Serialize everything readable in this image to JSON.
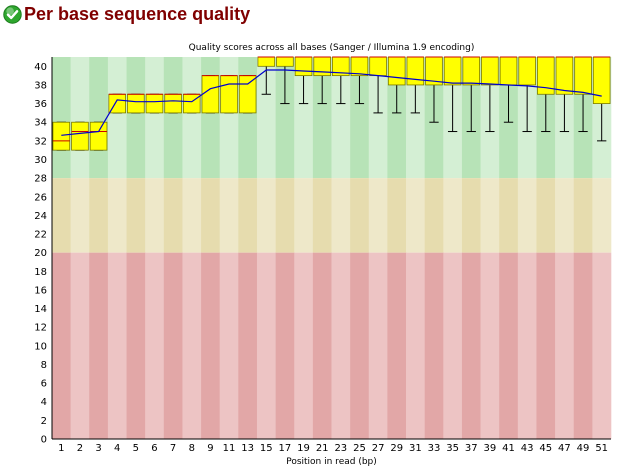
{
  "header": {
    "title": "Per base sequence quality",
    "status_icon": "pass-checkmark-icon"
  },
  "colors": {
    "title": "#800000",
    "icon_green": "#2ea62e",
    "good_zone": [
      "#b7e3b7",
      "#d4efd4"
    ],
    "warn_zone": [
      "#e6dcae",
      "#eee8c9"
    ],
    "bad_zone": [
      "#e2a7a7",
      "#edc4c4"
    ],
    "box_fill": "#ffff00",
    "box_stroke": "#7a7a00",
    "mean_line": "#0000cc",
    "median_line": "#cc0000",
    "whisker": "#000000"
  },
  "chart_data": {
    "type": "boxplot",
    "title": "Quality scores across all bases (Sanger / Illumina 1.9 encoding)",
    "xlabel": "Position in read (bp)",
    "ylabel": "",
    "ylim": [
      0,
      41
    ],
    "yticks": [
      0,
      2,
      4,
      6,
      8,
      10,
      12,
      14,
      16,
      18,
      20,
      22,
      24,
      26,
      28,
      30,
      32,
      34,
      36,
      38,
      40
    ],
    "xtick_labels": [
      "1",
      "2",
      "3",
      "4",
      "5",
      "6",
      "7",
      "8",
      "9",
      "11",
      "13",
      "15",
      "17",
      "19",
      "21",
      "23",
      "25",
      "27",
      "29",
      "31",
      "33",
      "35",
      "37",
      "39",
      "41",
      "43",
      "45",
      "47",
      "49",
      "51"
    ],
    "quality_zones": [
      {
        "name": "good",
        "from": 28,
        "to": 41
      },
      {
        "name": "reasonable",
        "from": 20,
        "to": 28
      },
      {
        "name": "poor",
        "from": 0,
        "to": 20
      }
    ],
    "positions": [
      1,
      2,
      3,
      4,
      5,
      6,
      7,
      8,
      9,
      11,
      13,
      15,
      17,
      19,
      21,
      23,
      25,
      27,
      29,
      31,
      33,
      35,
      37,
      39,
      41,
      43,
      45,
      47,
      49,
      51
    ],
    "boxes": [
      {
        "low": 31,
        "q1": 31,
        "median": 32,
        "q3": 34,
        "high": 34,
        "mean": 32.6
      },
      {
        "low": 31,
        "q1": 31,
        "median": 33,
        "q3": 34,
        "high": 34,
        "mean": 32.8
      },
      {
        "low": 31,
        "q1": 31,
        "median": 33,
        "q3": 34,
        "high": 34,
        "mean": 33.0
      },
      {
        "low": 35,
        "q1": 35,
        "median": 37,
        "q3": 37,
        "high": 37,
        "mean": 36.4
      },
      {
        "low": 35,
        "q1": 35,
        "median": 37,
        "q3": 37,
        "high": 37,
        "mean": 36.2
      },
      {
        "low": 35,
        "q1": 35,
        "median": 37,
        "q3": 37,
        "high": 37,
        "mean": 36.2
      },
      {
        "low": 35,
        "q1": 35,
        "median": 37,
        "q3": 37,
        "high": 37,
        "mean": 36.3
      },
      {
        "low": 35,
        "q1": 35,
        "median": 37,
        "q3": 37,
        "high": 37,
        "mean": 36.2
      },
      {
        "low": 35,
        "q1": 35,
        "median": 39,
        "q3": 39,
        "high": 39,
        "mean": 37.6
      },
      {
        "low": 35,
        "q1": 35,
        "median": 39,
        "q3": 39,
        "high": 39,
        "mean": 38.1
      },
      {
        "low": 35,
        "q1": 35,
        "median": 39,
        "q3": 39,
        "high": 39,
        "mean": 38.1
      },
      {
        "low": 37,
        "q1": 40,
        "median": 41,
        "q3": 41,
        "high": 41,
        "mean": 39.6
      },
      {
        "low": 36,
        "q1": 40,
        "median": 41,
        "q3": 41,
        "high": 41,
        "mean": 39.6
      },
      {
        "low": 36,
        "q1": 39,
        "median": 41,
        "q3": 41,
        "high": 41,
        "mean": 39.5
      },
      {
        "low": 36,
        "q1": 39,
        "median": 41,
        "q3": 41,
        "high": 41,
        "mean": 39.4
      },
      {
        "low": 36,
        "q1": 39,
        "median": 41,
        "q3": 41,
        "high": 41,
        "mean": 39.3
      },
      {
        "low": 36,
        "q1": 39,
        "median": 41,
        "q3": 41,
        "high": 41,
        "mean": 39.2
      },
      {
        "low": 35,
        "q1": 39,
        "median": 41,
        "q3": 41,
        "high": 41,
        "mean": 39.0
      },
      {
        "low": 35,
        "q1": 38,
        "median": 41,
        "q3": 41,
        "high": 41,
        "mean": 38.8
      },
      {
        "low": 35,
        "q1": 38,
        "median": 41,
        "q3": 41,
        "high": 41,
        "mean": 38.6
      },
      {
        "low": 34,
        "q1": 38,
        "median": 41,
        "q3": 41,
        "high": 41,
        "mean": 38.4
      },
      {
        "low": 33,
        "q1": 38,
        "median": 41,
        "q3": 41,
        "high": 41,
        "mean": 38.2
      },
      {
        "low": 33,
        "q1": 38,
        "median": 41,
        "q3": 41,
        "high": 41,
        "mean": 38.2
      },
      {
        "low": 33,
        "q1": 38,
        "median": 41,
        "q3": 41,
        "high": 41,
        "mean": 38.1
      },
      {
        "low": 34,
        "q1": 38,
        "median": 41,
        "q3": 41,
        "high": 41,
        "mean": 38.0
      },
      {
        "low": 33,
        "q1": 38,
        "median": 41,
        "q3": 41,
        "high": 41,
        "mean": 37.9
      },
      {
        "low": 33,
        "q1": 37,
        "median": 41,
        "q3": 41,
        "high": 41,
        "mean": 37.7
      },
      {
        "low": 33,
        "q1": 37,
        "median": 41,
        "q3": 41,
        "high": 41,
        "mean": 37.4
      },
      {
        "low": 33,
        "q1": 37,
        "median": 41,
        "q3": 41,
        "high": 41,
        "mean": 37.2
      },
      {
        "low": 32,
        "q1": 36,
        "median": 41,
        "q3": 41,
        "high": 41,
        "mean": 36.8
      }
    ]
  }
}
